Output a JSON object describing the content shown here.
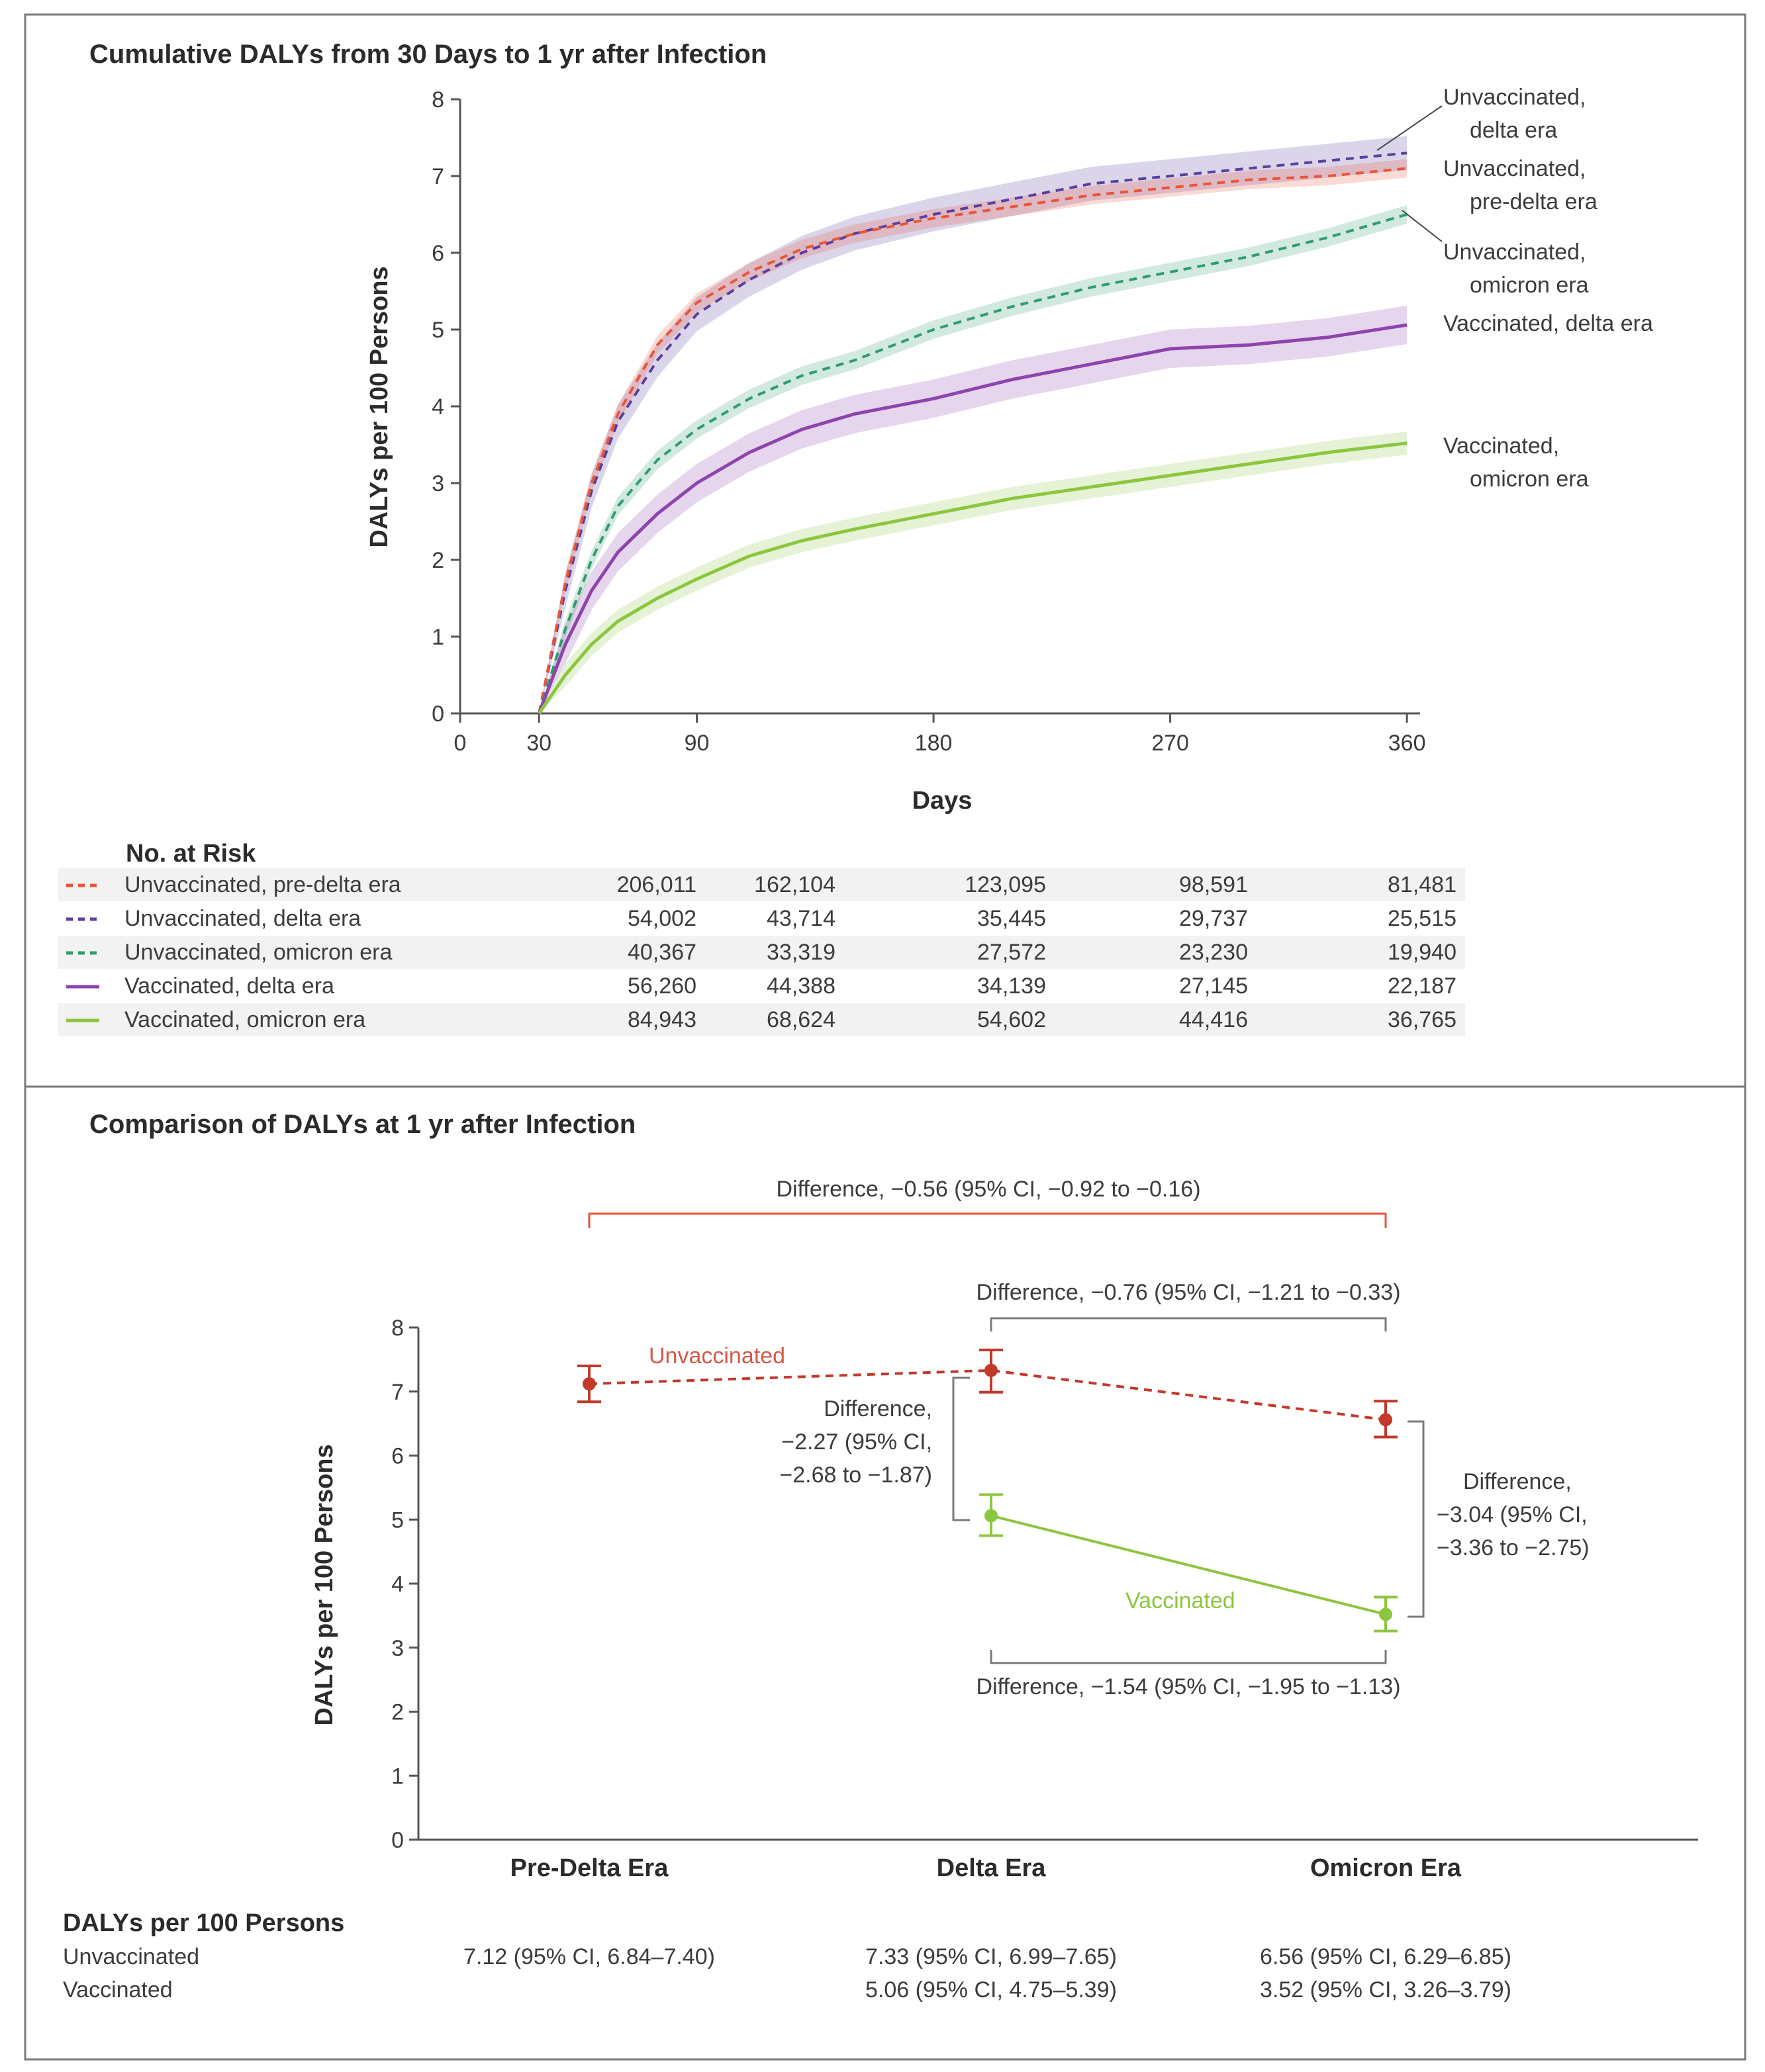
{
  "panel_a": {
    "title": "Cumulative DALYs from 30 Days to 1 yr after Infection",
    "xlabel": "Days",
    "ylabel": "DALYs per 100 Persons",
    "at_risk": {
      "heading": "No. at Risk",
      "rows": [
        {
          "label": "Unvaccinated, pre-delta era",
          "values": [
            "206,011",
            "162,104",
            "123,095",
            "98,591",
            "81,481"
          ]
        },
        {
          "label": "Unvaccinated, delta era",
          "values": [
            "54,002",
            "43,714",
            "35,445",
            "29,737",
            "25,515"
          ]
        },
        {
          "label": "Unvaccinated, omicron era",
          "values": [
            "40,367",
            "33,319",
            "27,572",
            "23,230",
            "19,940"
          ]
        },
        {
          "label": "Vaccinated, delta era",
          "values": [
            "56,260",
            "44,388",
            "34,139",
            "27,145",
            "22,187"
          ]
        },
        {
          "label": "Vaccinated, omicron era",
          "values": [
            "84,943",
            "68,624",
            "54,602",
            "44,416",
            "36,765"
          ]
        }
      ]
    }
  },
  "panel_b": {
    "title": "Comparison of DALYs at 1 yr after Infection",
    "ylabel": "DALYs per 100 Persons",
    "unvacc_label": "Unvaccinated",
    "vacc_label": "Vaccinated",
    "annotations": {
      "top": "Difference, −0.56 (95% CI, −0.92 to −0.16)",
      "upper": "Difference, −0.76 (95% CI, −1.21 to −0.33)",
      "lower": "Difference, −1.54 (95% CI, −1.95 to −1.13)",
      "delta": [
        "Difference,",
        "−2.27 (95% CI,",
        "−2.68 to −1.87)"
      ],
      "omicron": [
        "Difference,",
        "−3.04 (95% CI,",
        "−3.36 to −2.75)"
      ]
    },
    "table": {
      "heading": "DALYs per 100 Persons",
      "rows": [
        {
          "label": "Unvaccinated",
          "values": [
            "7.12 (95% CI, 6.84–7.40)",
            "7.33 (95% CI, 6.99–7.65)",
            "6.56 (95% CI, 6.29–6.85)"
          ]
        },
        {
          "label": "Vaccinated",
          "values": [
            "",
            "5.06 (95% CI, 4.75–5.39)",
            "3.52 (95% CI, 3.26–3.79)"
          ]
        }
      ]
    }
  },
  "colors": {
    "unvacc_predelta": "#e8553a",
    "unvacc_delta": "#5b3f9e",
    "unvacc_omicron": "#2f9c6c",
    "vacc_delta": "#8e44ad",
    "vacc_omicron": "#8cc63f",
    "unvacc_panel_b": "#c0392b",
    "vacc_panel_b": "#8cc63f"
  },
  "chart_data": [
    {
      "type": "line",
      "title": "Cumulative DALYs from 30 Days to 1 yr after Infection",
      "xlabel": "Days",
      "ylabel": "DALYs per 100 Persons",
      "xlim": [
        0,
        365
      ],
      "ylim": [
        0,
        8
      ],
      "xticks": [
        0,
        30,
        90,
        180,
        270,
        360
      ],
      "yticks": [
        0,
        1,
        2,
        3,
        4,
        5,
        6,
        7,
        8
      ],
      "x": [
        30,
        40,
        50,
        60,
        75,
        90,
        110,
        130,
        150,
        180,
        210,
        240,
        270,
        300,
        330,
        360
      ],
      "series": [
        {
          "name": "Unvaccinated, delta era",
          "label": [
            "Unvaccinated,",
            "delta era"
          ],
          "color": "#5b3f9e",
          "style": "dashed",
          "values": [
            0,
            1.6,
            2.9,
            3.8,
            4.6,
            5.2,
            5.65,
            6.0,
            6.25,
            6.5,
            6.7,
            6.9,
            7.0,
            7.1,
            7.2,
            7.3
          ],
          "ci": 0.22
        },
        {
          "name": "Unvaccinated, pre-delta era",
          "label": [
            "Unvaccinated,",
            "pre-delta era"
          ],
          "color": "#e8553a",
          "style": "dashed",
          "values": [
            0,
            1.7,
            3.0,
            3.9,
            4.8,
            5.35,
            5.75,
            6.05,
            6.25,
            6.45,
            6.6,
            6.75,
            6.85,
            6.95,
            7.0,
            7.1
          ],
          "ci": 0.12
        },
        {
          "name": "Unvaccinated, omicron era",
          "label": [
            "Unvaccinated,",
            "omicron era"
          ],
          "color": "#2f9c6c",
          "style": "dashed",
          "values": [
            0,
            1.1,
            2.0,
            2.7,
            3.3,
            3.7,
            4.1,
            4.4,
            4.6,
            5.0,
            5.3,
            5.55,
            5.75,
            5.95,
            6.2,
            6.5
          ],
          "ci": 0.12
        },
        {
          "name": "Vaccinated, delta era",
          "label": [
            "Vaccinated, delta era"
          ],
          "color": "#8e44ad",
          "style": "solid",
          "values": [
            0,
            0.9,
            1.6,
            2.1,
            2.6,
            3.0,
            3.4,
            3.7,
            3.9,
            4.1,
            4.35,
            4.55,
            4.75,
            4.8,
            4.9,
            5.06
          ],
          "ci": 0.25
        },
        {
          "name": "Vaccinated, omicron era",
          "label": [
            "Vaccinated,",
            "omicron era"
          ],
          "color": "#8cc63f",
          "style": "solid",
          "values": [
            0,
            0.5,
            0.9,
            1.2,
            1.5,
            1.75,
            2.05,
            2.25,
            2.4,
            2.6,
            2.8,
            2.95,
            3.1,
            3.25,
            3.4,
            3.52
          ],
          "ci": 0.15
        }
      ]
    },
    {
      "type": "scatter",
      "title": "Comparison of DALYs at 1 yr after Infection",
      "ylabel": "DALYs per 100 Persons",
      "ylim": [
        0,
        8
      ],
      "yticks": [
        0,
        1,
        2,
        3,
        4,
        5,
        6,
        7,
        8
      ],
      "categories": [
        "Pre-Delta Era",
        "Delta Era",
        "Omicron Era"
      ],
      "series": [
        {
          "name": "Unvaccinated",
          "color": "#c0392b",
          "style": "dashed",
          "values": [
            7.12,
            7.33,
            6.56
          ],
          "lower": [
            6.84,
            6.99,
            6.29
          ],
          "upper": [
            7.4,
            7.65,
            6.85
          ]
        },
        {
          "name": "Vaccinated",
          "color": "#8cc63f",
          "style": "solid",
          "values": [
            null,
            5.06,
            3.52
          ],
          "lower": [
            null,
            4.75,
            3.26
          ],
          "upper": [
            null,
            5.39,
            3.79
          ]
        }
      ]
    }
  ]
}
